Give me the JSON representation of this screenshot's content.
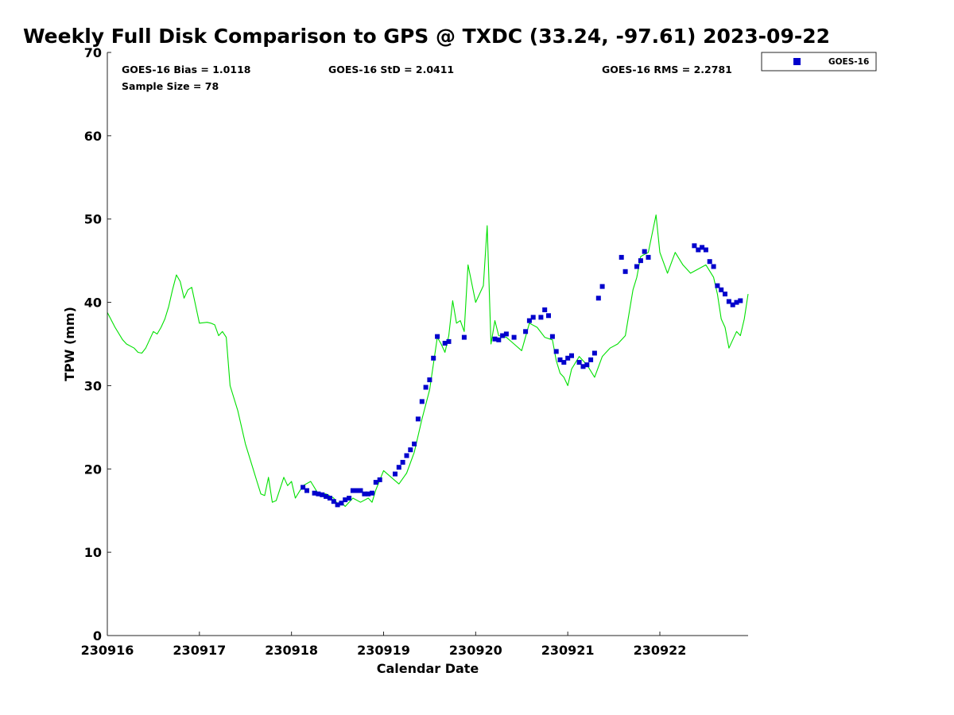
{
  "chart_data": {
    "type": "scatter",
    "title": "Weekly Full Disk Comparison to GPS @ TXDC (33.24, -97.61) 2023-09-22",
    "xlabel": "Calendar Date",
    "ylabel": "TPW (mm)",
    "xlim": [
      "230916 00:00",
      "230922 23:00"
    ],
    "ylim": [
      0,
      70
    ],
    "x_tick_labels": [
      "230916",
      "230917",
      "230918",
      "230919",
      "230920",
      "230921",
      "230922"
    ],
    "y_ticks": [
      0,
      10,
      20,
      30,
      40,
      50,
      60,
      70
    ],
    "y_tick_labels": [
      "0",
      "10",
      "20",
      "30",
      "40",
      "50",
      "60",
      "70"
    ],
    "stats": {
      "bias": "GOES-16 Bias = 1.0118",
      "std": "GOES-16 StD = 2.0411",
      "rms": "GOES-16 RMS = 2.2781",
      "sample": "Sample Size = 78"
    },
    "legend": {
      "position": "top-right, outside plot",
      "entries": [
        "GOES-16"
      ]
    },
    "colors": {
      "gps_line": "#00e000",
      "goes16": "#0000cc"
    },
    "series": [
      {
        "name": "GOES-16",
        "type": "scatter",
        "x": [
          "230918 03:00",
          "230918 04:00",
          "230918 06:00",
          "230918 07:00",
          "230918 08:00",
          "230918 09:00",
          "230918 10:00",
          "230918 11:00",
          "230918 12:00",
          "230918 13:00",
          "230918 14:00",
          "230918 15:00",
          "230918 16:00",
          "230918 17:00",
          "230918 18:00",
          "230918 19:00",
          "230918 20:00",
          "230918 21:00",
          "230918 22:00",
          "230918 23:00",
          "230919 03:00",
          "230919 04:00",
          "230919 05:00",
          "230919 06:00",
          "230919 07:00",
          "230919 08:00",
          "230919 09:00",
          "230919 10:00",
          "230919 11:00",
          "230919 12:00",
          "230919 13:00",
          "230919 14:00",
          "230919 16:00",
          "230919 17:00",
          "230919 21:00",
          "230920 05:00",
          "230920 06:00",
          "230920 07:00",
          "230920 08:00",
          "230920 10:00",
          "230920 13:00",
          "230920 14:00",
          "230920 15:00",
          "230920 17:00",
          "230920 18:00",
          "230920 19:00",
          "230920 20:00",
          "230920 21:00",
          "230920 22:00",
          "230920 23:00",
          "230921 00:00",
          "230921 01:00",
          "230921 03:00",
          "230921 04:00",
          "230921 05:00",
          "230921 06:00",
          "230921 07:00",
          "230921 08:00",
          "230921 09:00",
          "230921 14:00",
          "230921 15:00",
          "230921 18:00",
          "230921 19:00",
          "230921 20:00",
          "230921 21:00",
          "230922 09:00",
          "230922 10:00",
          "230922 11:00",
          "230922 12:00",
          "230922 13:00",
          "230922 14:00",
          "230922 15:00",
          "230922 16:00",
          "230922 17:00",
          "230922 18:00",
          "230922 19:00",
          "230922 20:00",
          "230922 21:00"
        ],
        "y": [
          17.8,
          17.4,
          17.1,
          17.0,
          16.9,
          16.7,
          16.5,
          16.1,
          15.7,
          15.9,
          16.3,
          16.5,
          17.4,
          17.4,
          17.4,
          17.0,
          17.0,
          17.1,
          18.4,
          18.7,
          19.4,
          20.2,
          20.8,
          21.6,
          22.3,
          23.0,
          26.0,
          28.1,
          29.8,
          30.7,
          33.3,
          35.9,
          35.1,
          35.3,
          35.8,
          35.6,
          35.5,
          36.0,
          36.2,
          35.8,
          36.5,
          37.8,
          38.2,
          38.2,
          39.1,
          38.4,
          35.9,
          34.1,
          33.1,
          32.8,
          33.3,
          33.6,
          32.8,
          32.3,
          32.5,
          33.1,
          33.9,
          40.5,
          41.9,
          45.4,
          43.7,
          44.3,
          45.0,
          46.1,
          45.4,
          46.8,
          46.3,
          46.6,
          46.3,
          44.9,
          44.3,
          42.0,
          41.5,
          41.0,
          40.1,
          39.7,
          40.0,
          40.2
        ]
      },
      {
        "name": "GPS",
        "type": "line",
        "x": [
          "230916 00:00",
          "230916 02:00",
          "230916 04:00",
          "230916 05:00",
          "230916 07:00",
          "230916 08:00",
          "230916 09:00",
          "230916 10:00",
          "230916 11:00",
          "230916 12:00",
          "230916 13:00",
          "230916 14:00",
          "230916 15:00",
          "230916 16:00",
          "230916 17:00",
          "230916 18:00",
          "230916 19:00",
          "230916 20:00",
          "230916 21:00",
          "230916 22:00",
          "230917 00:00",
          "230917 02:00",
          "230917 03:00",
          "230917 04:00",
          "230917 05:00",
          "230917 06:00",
          "230917 07:00",
          "230917 08:00",
          "230917 10:00",
          "230917 12:00",
          "230917 14:00",
          "230917 15:00",
          "230917 16:00",
          "230917 17:00",
          "230917 18:00",
          "230917 19:00",
          "230917 20:00",
          "230917 22:00",
          "230917 23:00",
          "230918 00:00",
          "230918 01:00",
          "230918 03:00",
          "230918 05:00",
          "230918 07:00",
          "230918 09:00",
          "230918 11:00",
          "230918 12:00",
          "230918 13:00",
          "230918 14:00",
          "230918 16:00",
          "230918 18:00",
          "230918 20:00",
          "230918 21:00",
          "230918 22:00",
          "230919 00:00",
          "230919 02:00",
          "230919 04:00",
          "230919 06:00",
          "230919 08:00",
          "230919 10:00",
          "230919 12:00",
          "230919 14:00",
          "230919 15:00",
          "230919 16:00",
          "230919 17:00",
          "230919 18:00",
          "230919 19:00",
          "230919 20:00",
          "230919 21:00",
          "230919 22:00",
          "230920 00:00",
          "230920 02:00",
          "230920 03:00",
          "230920 04:00",
          "230920 05:00",
          "230920 06:00",
          "230920 08:00",
          "230920 10:00",
          "230920 12:00",
          "230920 14:00",
          "230920 16:00",
          "230920 18:00",
          "230920 20:00",
          "230920 21:00",
          "230920 22:00",
          "230920 23:00",
          "230921 00:00",
          "230921 01:00",
          "230921 03:00",
          "230921 05:00",
          "230921 07:00",
          "230921 09:00",
          "230921 11:00",
          "230921 13:00",
          "230921 15:00",
          "230921 17:00",
          "230921 18:00",
          "230921 19:00",
          "230921 21:00",
          "230921 23:00",
          "230922 00:00",
          "230922 02:00",
          "230922 04:00",
          "230922 06:00",
          "230922 08:00",
          "230922 10:00",
          "230922 12:00",
          "230922 14:00",
          "230922 15:00",
          "230922 16:00",
          "230922 17:00",
          "230922 18:00",
          "230922 20:00",
          "230922 21:00",
          "230922 22:00",
          "230922 23:00"
        ],
        "y": [
          38.8,
          37.0,
          35.5,
          35.0,
          34.5,
          34.0,
          33.9,
          34.5,
          35.5,
          36.5,
          36.2,
          37.0,
          38.0,
          39.5,
          41.5,
          43.3,
          42.5,
          40.5,
          41.5,
          41.8,
          37.5,
          37.6,
          37.5,
          37.3,
          36.0,
          36.5,
          35.8,
          30.0,
          27.0,
          23.0,
          20.0,
          18.5,
          17.0,
          16.8,
          19.0,
          16.0,
          16.2,
          19.0,
          18.0,
          18.5,
          16.5,
          18.0,
          18.5,
          17.0,
          17.0,
          16.5,
          15.8,
          16.0,
          15.5,
          16.5,
          16.0,
          16.5,
          16.0,
          17.5,
          19.8,
          19.0,
          18.2,
          19.5,
          22.0,
          26.0,
          29.5,
          35.8,
          35.0,
          34.0,
          36.0,
          40.2,
          37.5,
          37.8,
          36.5,
          44.5,
          40.0,
          42.0,
          49.2,
          35.0,
          37.8,
          36.0,
          35.8,
          35.0,
          34.2,
          37.5,
          37.0,
          35.8,
          35.5,
          33.0,
          31.5,
          31.0,
          30.0,
          32.0,
          33.5,
          32.5,
          31.0,
          33.5,
          34.5,
          35.0,
          36.0,
          41.5,
          43.0,
          45.5,
          46.0,
          50.5,
          46.0,
          43.5,
          46.0,
          44.5,
          43.5,
          44.0,
          44.5,
          43.0,
          41.0,
          38.0,
          37.0,
          34.5,
          36.5,
          36.0,
          38.0,
          41.0
        ]
      }
    ]
  }
}
